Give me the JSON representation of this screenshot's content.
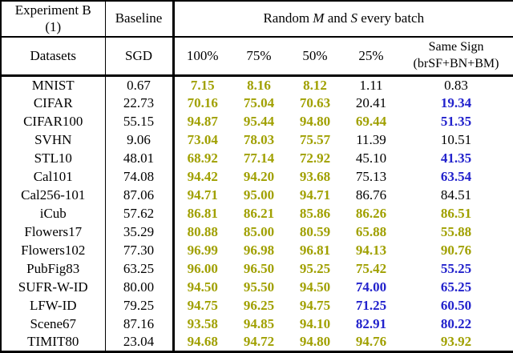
{
  "table": {
    "header": {
      "experiment_line1": "Experiment B",
      "experiment_line2": "(1)",
      "baseline": "Baseline",
      "random_title": {
        "prefix": "Random ",
        "m": "M",
        "mid": " and ",
        "s": "S",
        "suffix": " every batch"
      },
      "datasets": "Datasets",
      "sgd": "SGD",
      "percent_cols": [
        "100%",
        "75%",
        "50%",
        "25%"
      ],
      "same_sign_line1": "Same Sign",
      "same_sign_line2": "(brSF+BN+BM)"
    },
    "colors": {
      "olive": "#a0a000",
      "blue": "#2222cc",
      "black": "#000000",
      "border": "#000000",
      "background": "#ffffff"
    },
    "rows": [
      {
        "dataset": "MNIST",
        "sgd": "0.67",
        "values": [
          {
            "v": "7.15",
            "c": "olive"
          },
          {
            "v": "8.16",
            "c": "olive"
          },
          {
            "v": "8.12",
            "c": "olive"
          },
          {
            "v": "1.11",
            "c": "black"
          },
          {
            "v": "0.83",
            "c": "black"
          }
        ]
      },
      {
        "dataset": "CIFAR",
        "sgd": "22.73",
        "values": [
          {
            "v": "70.16",
            "c": "olive"
          },
          {
            "v": "75.04",
            "c": "olive"
          },
          {
            "v": "70.63",
            "c": "olive"
          },
          {
            "v": "20.41",
            "c": "black"
          },
          {
            "v": "19.34",
            "c": "blue"
          }
        ]
      },
      {
        "dataset": "CIFAR100",
        "sgd": "55.15",
        "values": [
          {
            "v": "94.87",
            "c": "olive"
          },
          {
            "v": "95.44",
            "c": "olive"
          },
          {
            "v": "94.80",
            "c": "olive"
          },
          {
            "v": "69.44",
            "c": "olive"
          },
          {
            "v": "51.35",
            "c": "blue"
          }
        ]
      },
      {
        "dataset": "SVHN",
        "sgd": "9.06",
        "values": [
          {
            "v": "73.04",
            "c": "olive"
          },
          {
            "v": "78.03",
            "c": "olive"
          },
          {
            "v": "75.57",
            "c": "olive"
          },
          {
            "v": "11.39",
            "c": "black"
          },
          {
            "v": "10.51",
            "c": "black"
          }
        ]
      },
      {
        "dataset": "STL10",
        "sgd": "48.01",
        "values": [
          {
            "v": "68.92",
            "c": "olive"
          },
          {
            "v": "77.14",
            "c": "olive"
          },
          {
            "v": "72.92",
            "c": "olive"
          },
          {
            "v": "45.10",
            "c": "black"
          },
          {
            "v": "41.35",
            "c": "blue"
          }
        ]
      },
      {
        "dataset": "Cal101",
        "sgd": "74.08",
        "values": [
          {
            "v": "94.42",
            "c": "olive"
          },
          {
            "v": "94.20",
            "c": "olive"
          },
          {
            "v": "93.68",
            "c": "olive"
          },
          {
            "v": "75.13",
            "c": "black"
          },
          {
            "v": "63.54",
            "c": "blue"
          }
        ]
      },
      {
        "dataset": "Cal256-101",
        "sgd": "87.06",
        "values": [
          {
            "v": "94.71",
            "c": "olive"
          },
          {
            "v": "95.00",
            "c": "olive"
          },
          {
            "v": "94.71",
            "c": "olive"
          },
          {
            "v": "86.76",
            "c": "black"
          },
          {
            "v": "84.51",
            "c": "black"
          }
        ]
      },
      {
        "dataset": "iCub",
        "sgd": "57.62",
        "values": [
          {
            "v": "86.81",
            "c": "olive"
          },
          {
            "v": "86.21",
            "c": "olive"
          },
          {
            "v": "85.86",
            "c": "olive"
          },
          {
            "v": "86.26",
            "c": "olive"
          },
          {
            "v": "86.51",
            "c": "olive"
          }
        ]
      },
      {
        "dataset": "Flowers17",
        "sgd": "35.29",
        "values": [
          {
            "v": "80.88",
            "c": "olive"
          },
          {
            "v": "85.00",
            "c": "olive"
          },
          {
            "v": "80.59",
            "c": "olive"
          },
          {
            "v": "65.88",
            "c": "olive"
          },
          {
            "v": "55.88",
            "c": "olive"
          }
        ]
      },
      {
        "dataset": "Flowers102",
        "sgd": "77.30",
        "values": [
          {
            "v": "96.99",
            "c": "olive"
          },
          {
            "v": "96.98",
            "c": "olive"
          },
          {
            "v": "96.81",
            "c": "olive"
          },
          {
            "v": "94.13",
            "c": "olive"
          },
          {
            "v": "90.76",
            "c": "olive"
          }
        ]
      },
      {
        "dataset": "PubFig83",
        "sgd": "63.25",
        "values": [
          {
            "v": "96.00",
            "c": "olive"
          },
          {
            "v": "96.50",
            "c": "olive"
          },
          {
            "v": "95.25",
            "c": "olive"
          },
          {
            "v": "75.42",
            "c": "olive"
          },
          {
            "v": "55.25",
            "c": "blue"
          }
        ]
      },
      {
        "dataset": "SUFR-W-ID",
        "sgd": "80.00",
        "values": [
          {
            "v": "94.50",
            "c": "olive"
          },
          {
            "v": "95.50",
            "c": "olive"
          },
          {
            "v": "94.50",
            "c": "olive"
          },
          {
            "v": "74.00",
            "c": "blue"
          },
          {
            "v": "65.25",
            "c": "blue"
          }
        ]
      },
      {
        "dataset": "LFW-ID",
        "sgd": "79.25",
        "values": [
          {
            "v": "94.75",
            "c": "olive"
          },
          {
            "v": "96.25",
            "c": "olive"
          },
          {
            "v": "94.75",
            "c": "olive"
          },
          {
            "v": "71.25",
            "c": "blue"
          },
          {
            "v": "60.50",
            "c": "blue"
          }
        ]
      },
      {
        "dataset": "Scene67",
        "sgd": "87.16",
        "values": [
          {
            "v": "93.58",
            "c": "olive"
          },
          {
            "v": "94.85",
            "c": "olive"
          },
          {
            "v": "94.10",
            "c": "olive"
          },
          {
            "v": "82.91",
            "c": "blue"
          },
          {
            "v": "80.22",
            "c": "blue"
          }
        ]
      },
      {
        "dataset": "TIMIT80",
        "sgd": "23.04",
        "values": [
          {
            "v": "94.68",
            "c": "olive"
          },
          {
            "v": "94.72",
            "c": "olive"
          },
          {
            "v": "94.80",
            "c": "olive"
          },
          {
            "v": "94.76",
            "c": "olive"
          },
          {
            "v": "93.92",
            "c": "olive"
          }
        ]
      }
    ]
  }
}
